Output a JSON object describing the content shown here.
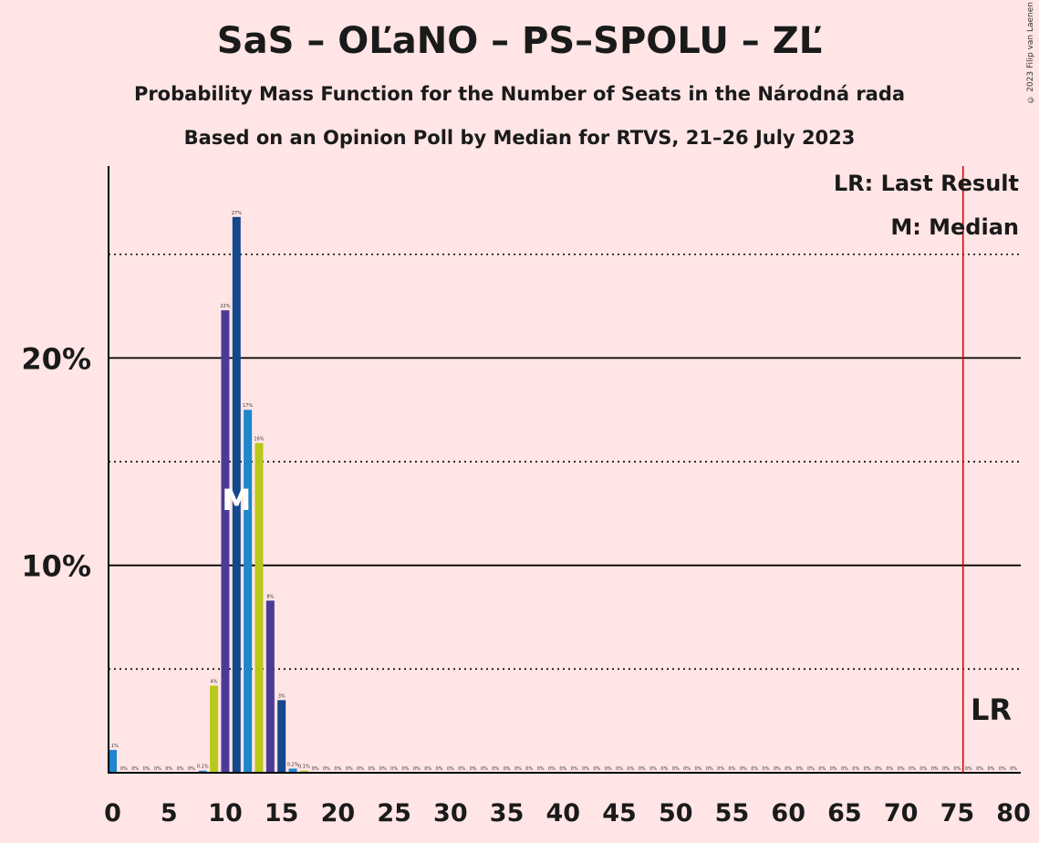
{
  "title": "SaS – OĽaNO – PS–SPOLU – ZĽ",
  "subtitle_1": "Probability Mass Function for the Number of Seats in the Národná rada",
  "subtitle_2": "Based on an Opinion Poll by Median for RTVS, 21–26 July 2023",
  "copyright": "© 2023 Filip van Laenen",
  "legend": {
    "last_result": "LR: Last Result",
    "median": "M: Median"
  },
  "marks": {
    "median_label": "M",
    "last_result_label": "LR"
  },
  "colors": {
    "background": "#ffe5e5",
    "blue": "#1e86cc",
    "purple": "#4b3a96",
    "navy": "#14478c",
    "lime": "#b8c91a",
    "last_result_line": "#cc0000"
  },
  "chart_data": {
    "type": "bar",
    "xlabel": "",
    "ylabel": "",
    "xlim": [
      0,
      80
    ],
    "ylim": [
      0,
      29
    ],
    "x_ticks": [
      0,
      5,
      10,
      15,
      20,
      25,
      30,
      35,
      40,
      45,
      50,
      55,
      60,
      65,
      70,
      75,
      80
    ],
    "y_ticks_labeled": [
      {
        "value": 10,
        "label": "10%"
      },
      {
        "value": 20,
        "label": "20%"
      }
    ],
    "y_gridlines_solid": [
      10,
      20
    ],
    "y_gridlines_dotted": [
      5,
      15,
      25
    ],
    "median_seat": 11,
    "last_result_seat": 76,
    "bars": [
      {
        "seat": 0,
        "value": 1.1,
        "label": "1.1%",
        "color": "blue"
      },
      {
        "seat": 1,
        "value": 0,
        "label": "0%",
        "color": "blue"
      },
      {
        "seat": 2,
        "value": 0,
        "label": "0%",
        "color": "blue"
      },
      {
        "seat": 3,
        "value": 0,
        "label": "0%",
        "color": "blue"
      },
      {
        "seat": 4,
        "value": 0,
        "label": "0%",
        "color": "blue"
      },
      {
        "seat": 5,
        "value": 0,
        "label": "0%",
        "color": "blue"
      },
      {
        "seat": 6,
        "value": 0,
        "label": "0%",
        "color": "blue"
      },
      {
        "seat": 7,
        "value": 0,
        "label": "0%",
        "color": "blue"
      },
      {
        "seat": 8,
        "value": 0.1,
        "label": "0.1%",
        "color": "blue"
      },
      {
        "seat": 9,
        "value": 4.2,
        "label": "4%",
        "color": "lime"
      },
      {
        "seat": 10,
        "value": 22.3,
        "label": "22%",
        "color": "purple"
      },
      {
        "seat": 11,
        "value": 26.8,
        "label": "27%",
        "color": "navy"
      },
      {
        "seat": 12,
        "value": 17.5,
        "label": "17%",
        "color": "blue"
      },
      {
        "seat": 13,
        "value": 15.9,
        "label": "16%",
        "color": "lime"
      },
      {
        "seat": 14,
        "value": 8.3,
        "label": "8%",
        "color": "purple"
      },
      {
        "seat": 15,
        "value": 3.5,
        "label": "3%",
        "color": "navy"
      },
      {
        "seat": 16,
        "value": 0.2,
        "label": "0.2%",
        "color": "blue"
      },
      {
        "seat": 17,
        "value": 0.1,
        "label": "0.1%",
        "color": "lime"
      },
      {
        "seat": 18,
        "value": 0,
        "label": "0%",
        "color": "purple"
      },
      {
        "seat": 19,
        "value": 0,
        "label": "0%",
        "color": "navy"
      },
      {
        "seat": 20,
        "value": 0,
        "label": "0%",
        "color": "blue"
      },
      {
        "seat": 21,
        "value": 0,
        "label": "0%",
        "color": "blue"
      },
      {
        "seat": 22,
        "value": 0,
        "label": "0%",
        "color": "blue"
      },
      {
        "seat": 23,
        "value": 0,
        "label": "0%",
        "color": "blue"
      },
      {
        "seat": 24,
        "value": 0,
        "label": "0%",
        "color": "blue"
      },
      {
        "seat": 25,
        "value": 0,
        "label": "0%",
        "color": "blue"
      },
      {
        "seat": 26,
        "value": 0,
        "label": "0%",
        "color": "blue"
      },
      {
        "seat": 27,
        "value": 0,
        "label": "0%",
        "color": "blue"
      },
      {
        "seat": 28,
        "value": 0,
        "label": "0%",
        "color": "blue"
      },
      {
        "seat": 29,
        "value": 0,
        "label": "0%",
        "color": "blue"
      },
      {
        "seat": 30,
        "value": 0,
        "label": "0%",
        "color": "blue"
      },
      {
        "seat": 31,
        "value": 0,
        "label": "0%",
        "color": "blue"
      },
      {
        "seat": 32,
        "value": 0,
        "label": "0%",
        "color": "blue"
      },
      {
        "seat": 33,
        "value": 0,
        "label": "0%",
        "color": "blue"
      },
      {
        "seat": 34,
        "value": 0,
        "label": "0%",
        "color": "blue"
      },
      {
        "seat": 35,
        "value": 0,
        "label": "0%",
        "color": "blue"
      },
      {
        "seat": 36,
        "value": 0,
        "label": "0%",
        "color": "blue"
      },
      {
        "seat": 37,
        "value": 0,
        "label": "0%",
        "color": "blue"
      },
      {
        "seat": 38,
        "value": 0,
        "label": "0%",
        "color": "blue"
      },
      {
        "seat": 39,
        "value": 0,
        "label": "0%",
        "color": "blue"
      },
      {
        "seat": 40,
        "value": 0,
        "label": "0%",
        "color": "blue"
      },
      {
        "seat": 41,
        "value": 0,
        "label": "0%",
        "color": "blue"
      },
      {
        "seat": 42,
        "value": 0,
        "label": "0%",
        "color": "blue"
      },
      {
        "seat": 43,
        "value": 0,
        "label": "0%",
        "color": "blue"
      },
      {
        "seat": 44,
        "value": 0,
        "label": "0%",
        "color": "blue"
      },
      {
        "seat": 45,
        "value": 0,
        "label": "0%",
        "color": "blue"
      },
      {
        "seat": 46,
        "value": 0,
        "label": "0%",
        "color": "blue"
      },
      {
        "seat": 47,
        "value": 0,
        "label": "0%",
        "color": "blue"
      },
      {
        "seat": 48,
        "value": 0,
        "label": "0%",
        "color": "blue"
      },
      {
        "seat": 49,
        "value": 0,
        "label": "0%",
        "color": "blue"
      },
      {
        "seat": 50,
        "value": 0,
        "label": "0%",
        "color": "blue"
      },
      {
        "seat": 51,
        "value": 0,
        "label": "0%",
        "color": "blue"
      },
      {
        "seat": 52,
        "value": 0,
        "label": "0%",
        "color": "blue"
      },
      {
        "seat": 53,
        "value": 0,
        "label": "0%",
        "color": "blue"
      },
      {
        "seat": 54,
        "value": 0,
        "label": "0%",
        "color": "blue"
      },
      {
        "seat": 55,
        "value": 0,
        "label": "0%",
        "color": "blue"
      },
      {
        "seat": 56,
        "value": 0,
        "label": "0%",
        "color": "blue"
      },
      {
        "seat": 57,
        "value": 0,
        "label": "0%",
        "color": "blue"
      },
      {
        "seat": 58,
        "value": 0,
        "label": "0%",
        "color": "blue"
      },
      {
        "seat": 59,
        "value": 0,
        "label": "0%",
        "color": "blue"
      },
      {
        "seat": 60,
        "value": 0,
        "label": "0%",
        "color": "blue"
      },
      {
        "seat": 61,
        "value": 0,
        "label": "0%",
        "color": "blue"
      },
      {
        "seat": 62,
        "value": 0,
        "label": "0%",
        "color": "blue"
      },
      {
        "seat": 63,
        "value": 0,
        "label": "0%",
        "color": "blue"
      },
      {
        "seat": 64,
        "value": 0,
        "label": "0%",
        "color": "blue"
      },
      {
        "seat": 65,
        "value": 0,
        "label": "0%",
        "color": "blue"
      },
      {
        "seat": 66,
        "value": 0,
        "label": "0%",
        "color": "blue"
      },
      {
        "seat": 67,
        "value": 0,
        "label": "0%",
        "color": "blue"
      },
      {
        "seat": 68,
        "value": 0,
        "label": "0%",
        "color": "blue"
      },
      {
        "seat": 69,
        "value": 0,
        "label": "0%",
        "color": "blue"
      },
      {
        "seat": 70,
        "value": 0,
        "label": "0%",
        "color": "blue"
      },
      {
        "seat": 71,
        "value": 0,
        "label": "0%",
        "color": "blue"
      },
      {
        "seat": 72,
        "value": 0,
        "label": "0%",
        "color": "blue"
      },
      {
        "seat": 73,
        "value": 0,
        "label": "0%",
        "color": "blue"
      },
      {
        "seat": 74,
        "value": 0,
        "label": "0%",
        "color": "blue"
      },
      {
        "seat": 75,
        "value": 0,
        "label": "0%",
        "color": "blue"
      },
      {
        "seat": 76,
        "value": 0,
        "label": "0%",
        "color": "blue"
      },
      {
        "seat": 77,
        "value": 0,
        "label": "0%",
        "color": "blue"
      },
      {
        "seat": 78,
        "value": 0,
        "label": "0%",
        "color": "blue"
      },
      {
        "seat": 79,
        "value": 0,
        "label": "0%",
        "color": "blue"
      },
      {
        "seat": 80,
        "value": 0,
        "label": "0%",
        "color": "blue"
      }
    ]
  }
}
